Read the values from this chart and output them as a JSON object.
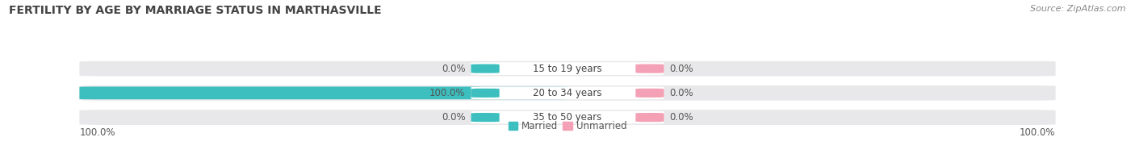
{
  "title": "FERTILITY BY AGE BY MARRIAGE STATUS IN MARTHASVILLE",
  "source": "Source: ZipAtlas.com",
  "categories": [
    "15 to 19 years",
    "20 to 34 years",
    "35 to 50 years"
  ],
  "married_values": [
    0.0,
    100.0,
    0.0
  ],
  "unmarried_values": [
    0.0,
    0.0,
    0.0
  ],
  "married_color": "#3DBFBF",
  "unmarried_color": "#F4A0B5",
  "bar_bg_color": "#E8E8EA",
  "bar_sep_color": "#FFFFFF",
  "title_fontsize": 10,
  "label_fontsize": 8.5,
  "value_fontsize": 8.5,
  "tick_fontsize": 8.5,
  "source_fontsize": 8,
  "background_color": "#FFFFFF",
  "left_tick_label": "100.0%",
  "right_tick_label": "100.0%"
}
